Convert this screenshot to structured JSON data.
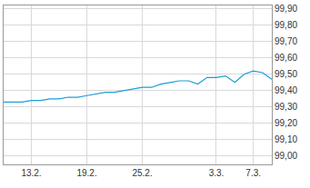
{
  "chart_data": {
    "type": "line",
    "categories": [
      null,
      null,
      null,
      "13.2.",
      null,
      null,
      null,
      null,
      null,
      "19.2.",
      null,
      null,
      null,
      null,
      null,
      "25.2.",
      null,
      null,
      null,
      null,
      null,
      null,
      null,
      "3.3.",
      null,
      null,
      null,
      "7.3.",
      null,
      null
    ],
    "values": [
      99.33,
      99.33,
      99.33,
      99.34,
      99.34,
      99.35,
      99.35,
      99.36,
      99.36,
      99.37,
      99.38,
      99.39,
      99.39,
      99.4,
      99.41,
      99.42,
      99.42,
      99.44,
      99.45,
      99.46,
      99.46,
      99.44,
      99.48,
      99.48,
      99.49,
      99.45,
      99.5,
      99.52,
      99.51,
      99.47
    ],
    "color": "#1a9fd6",
    "ylim": [
      98.95,
      99.92
    ],
    "yticks": [
      {
        "value": 99.0,
        "label": "99,00"
      },
      {
        "value": 99.1,
        "label": "99,10"
      },
      {
        "value": 99.2,
        "label": "99,20"
      },
      {
        "value": 99.3,
        "label": "99,30"
      },
      {
        "value": 99.4,
        "label": "99,40"
      },
      {
        "value": 99.5,
        "label": "99,50"
      },
      {
        "value": 99.6,
        "label": "99,60"
      },
      {
        "value": 99.7,
        "label": "99,70"
      },
      {
        "value": 99.8,
        "label": "99,80"
      },
      {
        "value": 99.9,
        "label": "99,90"
      }
    ],
    "grid": true
  }
}
